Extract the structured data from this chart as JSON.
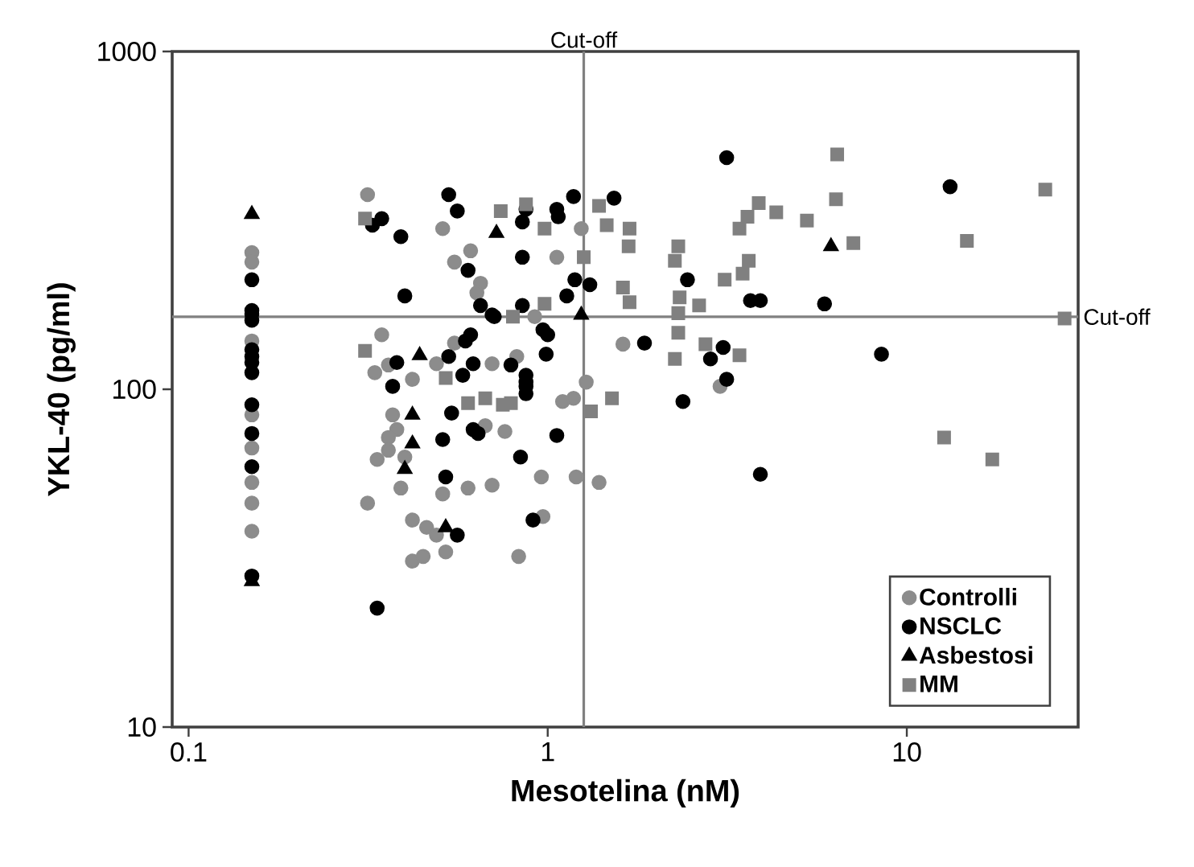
{
  "chart_data": {
    "type": "scatter",
    "xlabel": "Mesotelina (nM)",
    "ylabel": "YKL-40 (pg/ml)",
    "log": "xy",
    "xlim": [
      0.09,
      30
    ],
    "ylim": [
      10,
      1000
    ],
    "xticks": [
      0.1,
      1,
      10
    ],
    "yticks": [
      10,
      100,
      1000
    ],
    "legend": "bottom right",
    "ref_lines": [
      {
        "axis": "x",
        "value": 1.26,
        "label": "Cut-off",
        "color": "#808080"
      },
      {
        "axis": "y",
        "value": 164,
        "label": "Cut-off",
        "color": "#808080"
      }
    ],
    "series": [
      {
        "name": "Controlli",
        "color": "#8c8c8c",
        "marker": "circle",
        "x": [
          0.15,
          0.15,
          0.15,
          0.15,
          0.15,
          0.15,
          0.15,
          0.15,
          0.315,
          0.51,
          0.61,
          0.55,
          0.65,
          0.635,
          0.345,
          0.36,
          0.33,
          0.42,
          0.49,
          0.55,
          0.7,
          1.24,
          1.06,
          0.92,
          1.62,
          0.82,
          1.28,
          3.02,
          0.37,
          0.38,
          0.36,
          0.36,
          0.335,
          0.4,
          0.39,
          0.315,
          0.42,
          0.46,
          0.49,
          0.52,
          0.42,
          0.45,
          0.51,
          0.6,
          0.7,
          0.67,
          0.76,
          0.96,
          1.2,
          1.39,
          0.97,
          0.83,
          1.1,
          1.18
        ],
        "values": [
          254,
          238,
          139,
          84,
          67,
          53,
          46,
          38,
          377,
          299,
          257,
          238,
          206,
          193,
          145,
          118,
          112,
          107,
          119,
          137,
          119,
          299,
          246,
          164,
          136,
          125,
          105,
          102,
          84,
          76,
          72,
          66,
          62,
          63,
          51,
          46,
          41,
          39,
          37,
          33,
          31,
          32,
          49,
          51,
          52,
          78,
          75,
          55,
          55,
          53,
          42,
          32,
          92,
          94
        ]
      },
      {
        "name": "NSCLC",
        "color": "#000000",
        "marker": "circle",
        "x": [
          0.15,
          0.15,
          0.15,
          0.15,
          0.15,
          0.15,
          0.15,
          0.15,
          0.15,
          0.15,
          0.15,
          0.15,
          0.53,
          0.56,
          0.325,
          0.345,
          0.39,
          0.4,
          0.6,
          0.65,
          0.7,
          0.61,
          0.59,
          0.53,
          0.62,
          0.58,
          0.38,
          0.37,
          1.18,
          1.53,
          0.87,
          1.06,
          0.85,
          1.07,
          3.15,
          0.85,
          1.19,
          1.31,
          1.13,
          2.45,
          3.67,
          3.91,
          5.9,
          0.85,
          0.71,
          0.97,
          1.0,
          1.86,
          0.99,
          3.08,
          2.84,
          0.79,
          0.87,
          0.87,
          3.15,
          13.2,
          8.5,
          0.54,
          0.51,
          0.62,
          0.64,
          0.52,
          0.56,
          0.335,
          0.87,
          0.87,
          1.06,
          0.84,
          0.91,
          2.38,
          3.91
        ],
        "values": [
          211,
          171,
          167,
          160,
          131,
          125,
          120,
          112,
          90,
          74,
          59,
          28,
          377,
          337,
          306,
          320,
          283,
          189,
          225,
          177,
          166,
          145,
          139,
          125,
          119,
          110,
          120,
          102,
          372,
          368,
          341,
          341,
          313,
          324,
          485,
          246,
          211,
          204,
          189,
          211,
          183,
          183,
          179,
          177,
          164,
          150,
          145,
          137,
          127,
          133,
          123,
          118,
          110,
          105,
          107,
          398,
          127,
          85,
          71,
          76,
          74,
          55,
          37,
          22.5,
          102,
          97,
          73,
          63,
          41,
          92,
          56
        ]
      },
      {
        "name": "Asbestosi",
        "color": "#000000",
        "marker": "triangle",
        "x": [
          0.15,
          0.15,
          0.44,
          0.72,
          1.24,
          6.15,
          0.42,
          0.42,
          0.4,
          0.52
        ],
        "values": [
          330,
          27,
          126,
          290,
          166,
          265,
          84,
          69,
          58,
          39
        ]
      },
      {
        "name": "MM",
        "color": "#808080",
        "marker": "square",
        "x": [
          0.31,
          0.74,
          0.31,
          0.52,
          0.87,
          0.98,
          1.39,
          1.46,
          1.69,
          1.68,
          1.26,
          2.31,
          2.26,
          3.87,
          3.6,
          3.42,
          4.33,
          5.27,
          6.4,
          6.35,
          3.63,
          3.49,
          3.11,
          1.62,
          1.69,
          2.33,
          2.64,
          2.31,
          2.31,
          2.75,
          3.42,
          2.26,
          0.98,
          0.8,
          7.1,
          14.7,
          24.3,
          27.5,
          0.79,
          1.32,
          1.51,
          12.7,
          17.3,
          0.6,
          0.67,
          0.75
        ],
        "values": [
          320,
          337,
          130,
          108,
          353,
          299,
          349,
          306,
          299,
          265,
          246,
          265,
          240,
          356,
          324,
          299,
          334,
          316,
          496,
          365,
          240,
          220,
          211,
          200,
          181,
          187,
          177,
          168,
          147,
          136,
          126,
          123,
          179,
          164,
          271,
          275,
          390,
          162,
          91,
          86,
          94,
          72,
          62,
          91,
          94,
          90
        ]
      }
    ]
  }
}
